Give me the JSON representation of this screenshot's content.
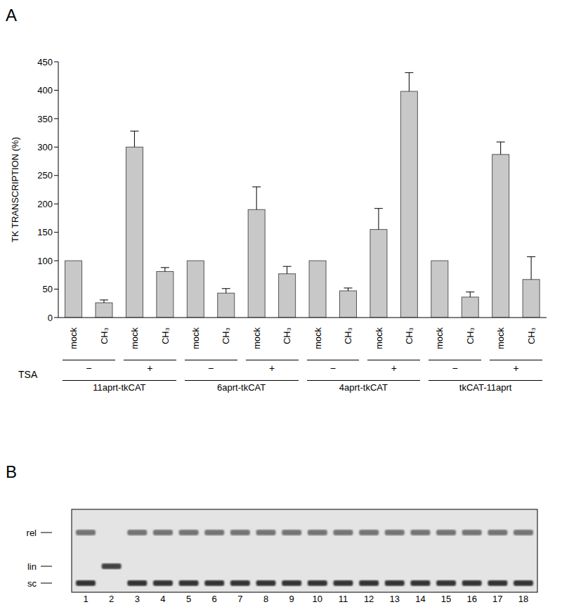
{
  "panel_labels": [
    "A",
    "B"
  ],
  "chart_data": {
    "type": "bar",
    "y_label": "TK TRANSCRIPTION (%)",
    "categories": [
      "mock",
      "CH₃",
      "mock",
      "CH₃",
      "mock",
      "CH₃",
      "mock",
      "CH₃",
      "mock",
      "CH₃",
      "mock",
      "CH₃",
      "mock",
      "CH₃",
      "mock",
      "CH₃"
    ],
    "values": [
      100,
      26,
      300,
      81,
      100,
      43,
      190,
      77,
      100,
      47,
      155,
      398,
      100,
      36,
      287,
      67
    ],
    "errors": [
      null,
      5,
      28,
      7,
      null,
      8,
      40,
      13,
      null,
      5,
      37,
      33,
      null,
      9,
      22,
      40
    ],
    "color": "#c8c8c8",
    "ylim": [
      0,
      450
    ],
    "yticks": [
      0,
      50,
      100,
      150,
      200,
      250,
      300,
      350,
      400,
      450
    ],
    "grid": false,
    "tsa_label": "TSA",
    "tsa_marks": [
      "−",
      "+"
    ],
    "groups": [
      "11aprt-tkCAT",
      "6aprt-tkCAT",
      "4aprt-tkCAT",
      "tkCAT-11aprt"
    ]
  },
  "gel": {
    "band_labels": [
      "rel",
      "lin",
      "sc"
    ],
    "lanes": [
      {
        "label": 1,
        "bands": [
          "rel",
          "sc"
        ]
      },
      {
        "label": 2,
        "bands": [
          "lin"
        ]
      },
      {
        "label": 3,
        "bands": [
          "rel",
          "sc"
        ]
      },
      {
        "label": 4,
        "bands": [
          "rel",
          "sc"
        ]
      },
      {
        "label": 5,
        "bands": [
          "rel",
          "sc"
        ]
      },
      {
        "label": 6,
        "bands": [
          "rel",
          "sc"
        ]
      },
      {
        "label": 7,
        "bands": [
          "rel",
          "sc"
        ]
      },
      {
        "label": 8,
        "bands": [
          "rel",
          "sc"
        ]
      },
      {
        "label": 9,
        "bands": [
          "rel",
          "sc"
        ]
      },
      {
        "label": 10,
        "bands": [
          "rel",
          "sc"
        ]
      },
      {
        "label": 11,
        "bands": [
          "rel",
          "sc"
        ]
      },
      {
        "label": 12,
        "bands": [
          "rel",
          "sc"
        ]
      },
      {
        "label": 13,
        "bands": [
          "rel",
          "sc"
        ]
      },
      {
        "label": 14,
        "bands": [
          "rel",
          "sc"
        ]
      },
      {
        "label": 15,
        "bands": [
          "rel",
          "sc"
        ]
      },
      {
        "label": 16,
        "bands": [
          "rel",
          "sc"
        ]
      },
      {
        "label": 17,
        "bands": [
          "rel",
          "sc"
        ]
      },
      {
        "label": 18,
        "bands": [
          "rel",
          "sc"
        ]
      }
    ]
  }
}
